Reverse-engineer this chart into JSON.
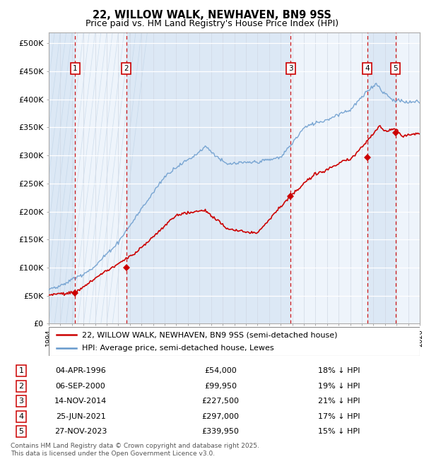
{
  "title": "22, WILLOW WALK, NEWHAVEN, BN9 9SS",
  "subtitle": "Price paid vs. HM Land Registry's House Price Index (HPI)",
  "xlim_start": 1994.0,
  "xlim_end": 2026.0,
  "ylim_min": 0,
  "ylim_max": 520000,
  "yticks": [
    0,
    50000,
    100000,
    150000,
    200000,
    250000,
    300000,
    350000,
    400000,
    450000,
    500000
  ],
  "ytick_labels": [
    "£0",
    "£50K",
    "£100K",
    "£150K",
    "£200K",
    "£250K",
    "£300K",
    "£350K",
    "£400K",
    "£450K",
    "£500K"
  ],
  "chart_bg": "#dce8f5",
  "band_color": "#dce8f5",
  "band_alt_color": "#edf3fa",
  "outer_hatch_color": "#c5d8ed",
  "grid_color": "#ffffff",
  "sale_color": "#cc0000",
  "hpi_color": "#6699cc",
  "sale_points": [
    {
      "year": 1996.27,
      "price": 54000,
      "label": "1"
    },
    {
      "year": 2000.68,
      "price": 99950,
      "label": "2"
    },
    {
      "year": 2014.87,
      "price": 227500,
      "label": "3"
    },
    {
      "year": 2021.48,
      "price": 297000,
      "label": "4"
    },
    {
      "year": 2023.9,
      "price": 339950,
      "label": "5"
    }
  ],
  "table_entries": [
    {
      "num": "1",
      "date": "04-APR-1996",
      "price": "£54,000",
      "pct": "18% ↓ HPI"
    },
    {
      "num": "2",
      "date": "06-SEP-2000",
      "price": "£99,950",
      "pct": "19% ↓ HPI"
    },
    {
      "num": "3",
      "date": "14-NOV-2014",
      "price": "£227,500",
      "pct": "21% ↓ HPI"
    },
    {
      "num": "4",
      "date": "25-JUN-2021",
      "price": "£297,000",
      "pct": "17% ↓ HPI"
    },
    {
      "num": "5",
      "date": "27-NOV-2023",
      "price": "£339,950",
      "pct": "15% ↓ HPI"
    }
  ],
  "legend_sale": "22, WILLOW WALK, NEWHAVEN, BN9 9SS (semi-detached house)",
  "legend_hpi": "HPI: Average price, semi-detached house, Lewes",
  "footer": "Contains HM Land Registry data © Crown copyright and database right 2025.\nThis data is licensed under the Open Government Licence v3.0."
}
